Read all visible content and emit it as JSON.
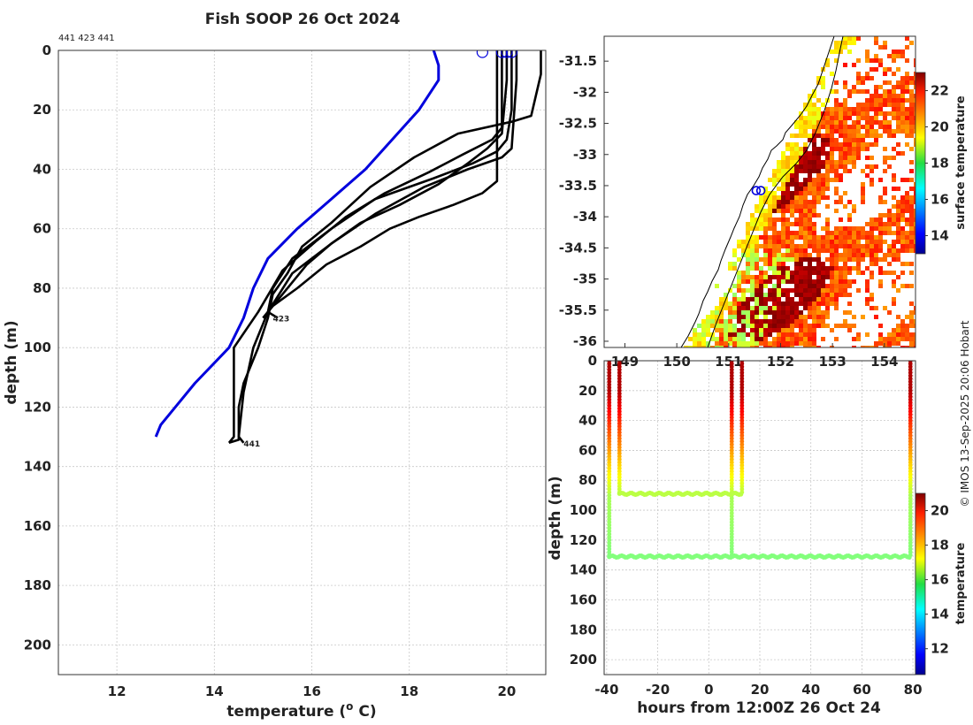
{
  "chart_data": [
    {
      "type": "line",
      "panel": "temperature-profile",
      "title": "Fish SOOP 26 Oct 2024",
      "drop_ids": "441 423 441",
      "xlabel": "temperature (",
      "xlabel_sup": "o",
      "xlabel_end": " C)",
      "ylabel": "depth (m)",
      "xlim": [
        10.8,
        20.8
      ],
      "ylim": [
        210,
        0
      ],
      "xticks": [
        12,
        14,
        16,
        18,
        20
      ],
      "yticks": [
        0,
        20,
        40,
        60,
        80,
        100,
        120,
        140,
        160,
        180,
        200
      ],
      "end_labels": [
        {
          "text": "423",
          "temp": 15.2,
          "depth": 90
        },
        {
          "text": "441",
          "temp": 14.6,
          "depth": 132
        }
      ],
      "series": [
        {
          "name": "climatology",
          "color": "#0000dd",
          "x": [
            18.5,
            18.6,
            18.6,
            18.2,
            17.1,
            16.4,
            15.7,
            15.1,
            14.8,
            14.6,
            14.3,
            13.6,
            13.2,
            12.9,
            12.8
          ],
          "y": [
            0,
            5,
            10,
            20,
            40,
            50,
            60,
            70,
            80,
            90,
            100,
            112,
            120,
            126,
            130
          ]
        },
        {
          "name": "drop-1",
          "color": "#000000",
          "x": [
            20.7,
            20.7,
            20.6,
            20.5,
            20.1,
            19.0,
            18.1,
            17.2,
            16.4,
            15.8,
            15.5,
            15.2,
            15.1,
            14.9,
            14.6,
            14.5,
            14.5,
            14.3
          ],
          "y": [
            0,
            8,
            15,
            22,
            24,
            28,
            36,
            46,
            58,
            66,
            75,
            82,
            90,
            100,
            112,
            120,
            131,
            132
          ]
        },
        {
          "name": "drop-2",
          "color": "#000000",
          "x": [
            20.1,
            20.1,
            20.1,
            20.0,
            19.9,
            19.8,
            19.3,
            18.5,
            17.3,
            16.4,
            15.6,
            15.2,
            15.1,
            15.3
          ],
          "y": [
            0,
            8,
            20,
            30,
            32,
            34,
            38,
            43,
            50,
            60,
            70,
            80,
            88,
            90
          ]
        },
        {
          "name": "drop-3",
          "color": "#000000",
          "x": [
            20.0,
            20.0,
            19.9,
            19.6,
            19.2,
            18.6,
            17.8,
            17.0,
            16.4,
            15.9,
            15.4,
            15.1,
            15.0
          ],
          "y": [
            0,
            10,
            28,
            33,
            38,
            45,
            52,
            58,
            65,
            72,
            82,
            88,
            90
          ]
        },
        {
          "name": "drop-4",
          "color": "#000000",
          "x": [
            19.9,
            19.9,
            19.9,
            19.7,
            19.1,
            18.4,
            17.5,
            16.7,
            16.1,
            15.4,
            14.9,
            14.4,
            14.4,
            14.3
          ],
          "y": [
            0,
            8,
            26,
            30,
            35,
            41,
            48,
            56,
            64,
            74,
            88,
            100,
            130,
            132
          ]
        },
        {
          "name": "drop-5",
          "color": "#000000",
          "x": [
            20.2,
            20.2,
            20.1,
            19.9,
            19.2,
            18.3,
            17.3,
            16.4,
            15.6,
            15.1,
            14.8,
            14.6,
            14.5,
            14.6
          ],
          "y": [
            0,
            10,
            33,
            36,
            40,
            46,
            55,
            65,
            75,
            88,
            100,
            115,
            130,
            132
          ]
        },
        {
          "name": "drop-6",
          "color": "#000000",
          "x": [
            19.8,
            19.8,
            19.8,
            19.5,
            18.9,
            18.2,
            17.6,
            17.0,
            16.3,
            15.7,
            15.2,
            15.0
          ],
          "y": [
            0,
            10,
            44,
            48,
            52,
            56,
            60,
            66,
            72,
            80,
            86,
            90
          ]
        }
      ],
      "surface_markers": [
        19.5,
        19.9,
        20.0,
        20.1
      ]
    },
    {
      "type": "heatmap",
      "panel": "surface-temperature-map",
      "lon_ticks": [
        "149",
        "150",
        "151",
        "152",
        "153",
        "154"
      ],
      "lat_ticks": [
        "-31.5",
        "-32",
        "-32.5",
        "-33",
        "-33.5",
        "-34",
        "-34.5",
        "-35",
        "-35.5",
        "-36"
      ],
      "lon_range": [
        148.6,
        154.6
      ],
      "lat_range": [
        -36.1,
        -31.1
      ],
      "colorbar_label": "surface temperature",
      "colorbar_ticks": [
        14,
        16,
        18,
        20,
        22
      ],
      "colorbar_range": [
        13,
        23
      ],
      "drop_locations": [
        {
          "lon": 151.53,
          "lat": -33.58
        },
        {
          "lon": 151.62,
          "lat": -33.58
        }
      ]
    },
    {
      "type": "scatter",
      "panel": "depth-time-section",
      "xlabel": "hours from 12:00Z 26 Oct 24",
      "ylabel": "depth (m)",
      "xlim": [
        -41,
        81
      ],
      "ylim": [
        210,
        0
      ],
      "xticks": [
        -40,
        -20,
        0,
        20,
        40,
        60,
        80
      ],
      "yticks": [
        0,
        20,
        40,
        60,
        80,
        100,
        120,
        140,
        160,
        180,
        200
      ],
      "colorbar_label": "temperature",
      "colorbar_ticks": [
        12,
        14,
        16,
        18,
        20
      ],
      "colorbar_range": [
        10.5,
        21
      ],
      "drops": [
        {
          "hour": -39,
          "max_depth": 131
        },
        {
          "hour": -35,
          "max_depth": 89
        },
        {
          "hour": 9,
          "max_depth": 131
        },
        {
          "hour": 13,
          "max_depth": 89
        },
        {
          "hour": 79,
          "max_depth": 131
        }
      ]
    }
  ],
  "credit": "© IMOS 13-Sep-2025 20:06 Hobart"
}
